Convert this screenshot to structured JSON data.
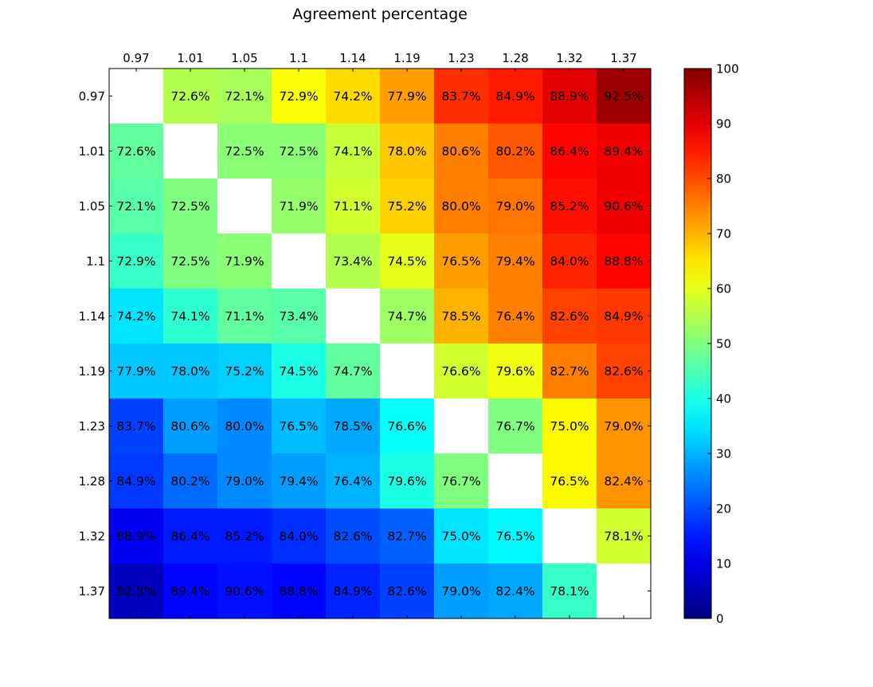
{
  "chart_data": {
    "type": "heatmap",
    "title": "Agreement percentage",
    "labels": [
      "0.97",
      "1.01",
      "1.05",
      "1.1",
      "1.14",
      "1.19",
      "1.23",
      "1.28",
      "1.32",
      "1.37"
    ],
    "upper_triangle_annotation": "row-wise, colored per value scale",
    "cell_text": [
      [
        "",
        "72.6%",
        "72.1%",
        "72.9%",
        "74.2%",
        "77.9%",
        "83.7%",
        "84.9%",
        "88.9%",
        "92.5%"
      ],
      [
        "72.6%",
        "",
        "72.5%",
        "72.5%",
        "74.1%",
        "78.0%",
        "80.6%",
        "80.2%",
        "86.4%",
        "89.4%"
      ],
      [
        "72.1%",
        "72.5%",
        "",
        "71.9%",
        "71.1%",
        "75.2%",
        "80.0%",
        "79.0%",
        "85.2%",
        "90.6%"
      ],
      [
        "72.9%",
        "72.5%",
        "71.9%",
        "",
        "73.4%",
        "74.5%",
        "76.5%",
        "79.4%",
        "84.0%",
        "88.8%"
      ],
      [
        "74.2%",
        "74.1%",
        "71.1%",
        "73.4%",
        "",
        "74.7%",
        "78.5%",
        "76.4%",
        "82.6%",
        "84.9%"
      ],
      [
        "77.9%",
        "78.0%",
        "75.2%",
        "74.5%",
        "74.7%",
        "",
        "76.6%",
        "79.6%",
        "82.7%",
        "82.6%"
      ],
      [
        "83.7%",
        "80.6%",
        "80.0%",
        "76.5%",
        "78.5%",
        "76.6%",
        "",
        "76.7%",
        "75.0%",
        "79.0%"
      ],
      [
        "84.9%",
        "80.2%",
        "79.0%",
        "79.4%",
        "76.4%",
        "79.6%",
        "76.7%",
        "",
        "76.5%",
        "82.4%"
      ],
      [
        "88.9%",
        "86.4%",
        "85.2%",
        "84.0%",
        "82.6%",
        "82.7%",
        "75.0%",
        "76.5%",
        "",
        "78.1%"
      ],
      [
        "92.5%",
        "89.4%",
        "90.6%",
        "88.8%",
        "84.9%",
        "82.6%",
        "79.0%",
        "82.4%",
        "78.1%",
        ""
      ]
    ],
    "color_values": [
      [
        null,
        55,
        54,
        62,
        66,
        72,
        83,
        85,
        90,
        97
      ],
      [
        47,
        null,
        51,
        51,
        57,
        68,
        75,
        79,
        87,
        89
      ],
      [
        46,
        50,
        null,
        52,
        58,
        67,
        75,
        76,
        86,
        89
      ],
      [
        43,
        50,
        51,
        null,
        55,
        60,
        72,
        75,
        84,
        87
      ],
      [
        35,
        42,
        47,
        46,
        null,
        53,
        70,
        75,
        81,
        82
      ],
      [
        32,
        32,
        33,
        40,
        47,
        null,
        58,
        61,
        75,
        81
      ],
      [
        19,
        28,
        26,
        31,
        29,
        38,
        null,
        50,
        63,
        73
      ],
      [
        18,
        23,
        26,
        28,
        30,
        40,
        50,
        null,
        63,
        73
      ],
      [
        11,
        15,
        15,
        17,
        20,
        22,
        35,
        37,
        null,
        58
      ],
      [
        6,
        13,
        14,
        13,
        16,
        19,
        28,
        29,
        43,
        null
      ]
    ],
    "colorbar": {
      "min": 0,
      "max": 100,
      "ticks": [
        0,
        10,
        20,
        30,
        40,
        50,
        60,
        70,
        80,
        90,
        100
      ],
      "colormap": "jet"
    },
    "diagonal": "empty (white)"
  }
}
